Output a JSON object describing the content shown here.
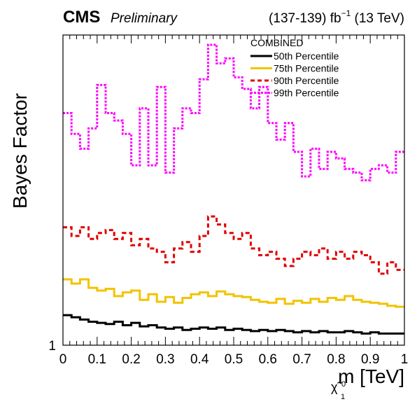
{
  "chart_data": {
    "type": "line",
    "cms_label": "CMS",
    "extra_label": "Preliminary",
    "lumi_label": "(137-139) fb",
    "lumi_exp": "−1",
    "energy_label": " (13 TeV)",
    "ylabel": "Bayes Factor",
    "xlabel_main": "m",
    "xlabel_sub": "χ̃",
    "xlabel_sub_sup": "0",
    "xlabel_sub_sub": "1",
    "xlabel_unit": " [TeV]",
    "ytick_label": "1",
    "legend_title": "COMBINED",
    "xlim": [
      0,
      1
    ],
    "ylim": [
      1.0,
      10.0
    ],
    "xticks": [
      0,
      0.1,
      0.2,
      0.3,
      0.4,
      0.5,
      0.6,
      0.7,
      0.8,
      0.9,
      1
    ],
    "xtick_labels": [
      "0",
      "0.1",
      "0.2",
      "0.3",
      "0.4",
      "0.5",
      "0.6",
      "0.7",
      "0.8",
      "0.9",
      "1"
    ],
    "bin_width": 0.025,
    "x": [
      0.0,
      0.025,
      0.05,
      0.075,
      0.1,
      0.125,
      0.15,
      0.175,
      0.2,
      0.225,
      0.25,
      0.275,
      0.3,
      0.325,
      0.35,
      0.375,
      0.4,
      0.425,
      0.45,
      0.475,
      0.5,
      0.525,
      0.55,
      0.575,
      0.6,
      0.625,
      0.65,
      0.675,
      0.7,
      0.725,
      0.75,
      0.775,
      0.8,
      0.825,
      0.85,
      0.875,
      0.9,
      0.925,
      0.95,
      0.975
    ],
    "series": [
      {
        "name": "50th Percentile",
        "color": "#000000",
        "dash": "solid",
        "values": [
          1.25,
          1.23,
          1.21,
          1.19,
          1.18,
          1.17,
          1.19,
          1.16,
          1.18,
          1.15,
          1.16,
          1.14,
          1.13,
          1.14,
          1.12,
          1.13,
          1.14,
          1.13,
          1.14,
          1.12,
          1.13,
          1.12,
          1.11,
          1.12,
          1.11,
          1.12,
          1.11,
          1.1,
          1.11,
          1.1,
          1.11,
          1.1,
          1.1,
          1.11,
          1.1,
          1.09,
          1.1,
          1.09,
          1.09,
          1.09
        ]
      },
      {
        "name": "75th Percentile",
        "color": "#f2c300",
        "dash": "solid",
        "values": [
          1.63,
          1.58,
          1.63,
          1.53,
          1.5,
          1.52,
          1.44,
          1.48,
          1.5,
          1.4,
          1.46,
          1.38,
          1.43,
          1.37,
          1.42,
          1.46,
          1.48,
          1.44,
          1.49,
          1.46,
          1.44,
          1.43,
          1.4,
          1.38,
          1.37,
          1.41,
          1.36,
          1.39,
          1.37,
          1.41,
          1.38,
          1.42,
          1.4,
          1.44,
          1.4,
          1.38,
          1.37,
          1.36,
          1.34,
          1.33
        ]
      },
      {
        "name": "90th Percentile",
        "color": "#e00000",
        "dash": "dashed",
        "values": [
          2.4,
          2.25,
          2.4,
          2.2,
          2.3,
          2.35,
          2.2,
          2.3,
          2.1,
          2.2,
          2.05,
          2.0,
          1.85,
          2.05,
          2.15,
          2.0,
          2.25,
          2.6,
          2.45,
          2.3,
          2.2,
          2.3,
          2.05,
          1.95,
          2.0,
          1.9,
          1.8,
          1.9,
          2.0,
          1.95,
          2.05,
          1.9,
          2.0,
          1.9,
          2.0,
          1.95,
          1.85,
          1.7,
          1.85,
          1.75
        ]
      },
      {
        "name": "99th Percentile",
        "color": "#ff00ff",
        "dash": "dotted",
        "values": [
          5.6,
          4.8,
          4.3,
          5.0,
          6.9,
          5.6,
          5.3,
          4.8,
          3.8,
          5.8,
          3.8,
          6.8,
          3.6,
          5.0,
          5.8,
          5.6,
          7.2,
          9.3,
          8.1,
          8.4,
          7.3,
          6.7,
          5.8,
          6.8,
          5.2,
          4.6,
          5.2,
          4.2,
          3.5,
          4.3,
          3.7,
          4.2,
          4.0,
          3.7,
          3.6,
          3.4,
          3.7,
          3.8,
          3.6,
          4.2
        ]
      }
    ],
    "legend_position": "top-right",
    "grid": false
  }
}
